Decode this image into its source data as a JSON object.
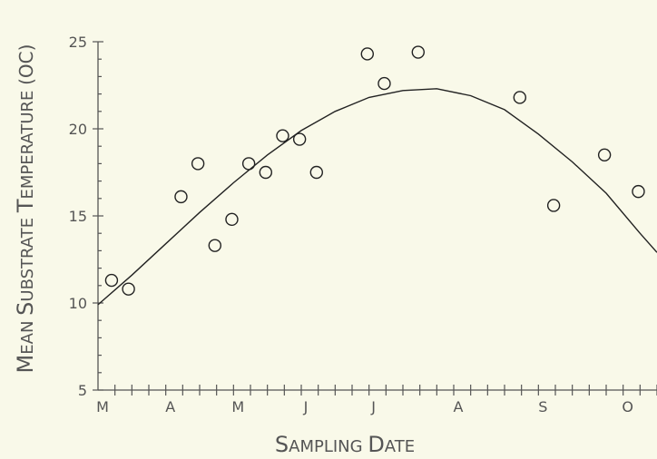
{
  "chart_data": {
    "type": "scatter",
    "title": "",
    "xlabel": "Sampling Date",
    "ylabel": "Mean Substrate Temperature (oC)",
    "ylim": [
      5,
      25
    ],
    "y_ticks": [
      "5",
      "10",
      "15",
      "20",
      "25"
    ],
    "x_tick_labels": [
      "M",
      "A",
      "M",
      "J",
      "J",
      "A",
      "S",
      "O"
    ],
    "xlim": [
      0,
      33
    ],
    "x_month_positions": [
      0,
      4,
      8,
      12,
      16,
      21,
      26,
      31
    ],
    "grid": false,
    "legend": "none",
    "points": [
      {
        "x": 0.8,
        "y": 11.3
      },
      {
        "x": 1.8,
        "y": 10.8
      },
      {
        "x": 4.9,
        "y": 16.1
      },
      {
        "x": 5.9,
        "y": 18.0
      },
      {
        "x": 6.9,
        "y": 13.3
      },
      {
        "x": 7.9,
        "y": 14.8
      },
      {
        "x": 8.9,
        "y": 18.0
      },
      {
        "x": 9.9,
        "y": 17.5
      },
      {
        "x": 10.9,
        "y": 19.6
      },
      {
        "x": 11.9,
        "y": 19.4
      },
      {
        "x": 12.9,
        "y": 17.5
      },
      {
        "x": 15.9,
        "y": 24.3
      },
      {
        "x": 16.9,
        "y": 22.6
      },
      {
        "x": 18.9,
        "y": 24.4
      },
      {
        "x": 24.9,
        "y": 21.8
      },
      {
        "x": 26.9,
        "y": 15.6
      },
      {
        "x": 29.9,
        "y": 18.5
      },
      {
        "x": 31.9,
        "y": 16.4
      }
    ],
    "fit_curve": [
      {
        "x": 0,
        "y": 9.9
      },
      {
        "x": 2,
        "y": 11.6
      },
      {
        "x": 4,
        "y": 13.4
      },
      {
        "x": 6,
        "y": 15.2
      },
      {
        "x": 8,
        "y": 16.9
      },
      {
        "x": 10,
        "y": 18.5
      },
      {
        "x": 12,
        "y": 19.9
      },
      {
        "x": 14,
        "y": 21.0
      },
      {
        "x": 16,
        "y": 21.8
      },
      {
        "x": 18,
        "y": 22.2
      },
      {
        "x": 20,
        "y": 22.3
      },
      {
        "x": 22,
        "y": 21.9
      },
      {
        "x": 24,
        "y": 21.1
      },
      {
        "x": 26,
        "y": 19.7
      },
      {
        "x": 28,
        "y": 18.1
      },
      {
        "x": 30,
        "y": 16.3
      },
      {
        "x": 32,
        "y": 14.0
      },
      {
        "x": 33,
        "y": 12.9
      }
    ],
    "colors": {
      "background": "#f9f9e9",
      "axis": "#555555",
      "marks": "#222222"
    }
  }
}
